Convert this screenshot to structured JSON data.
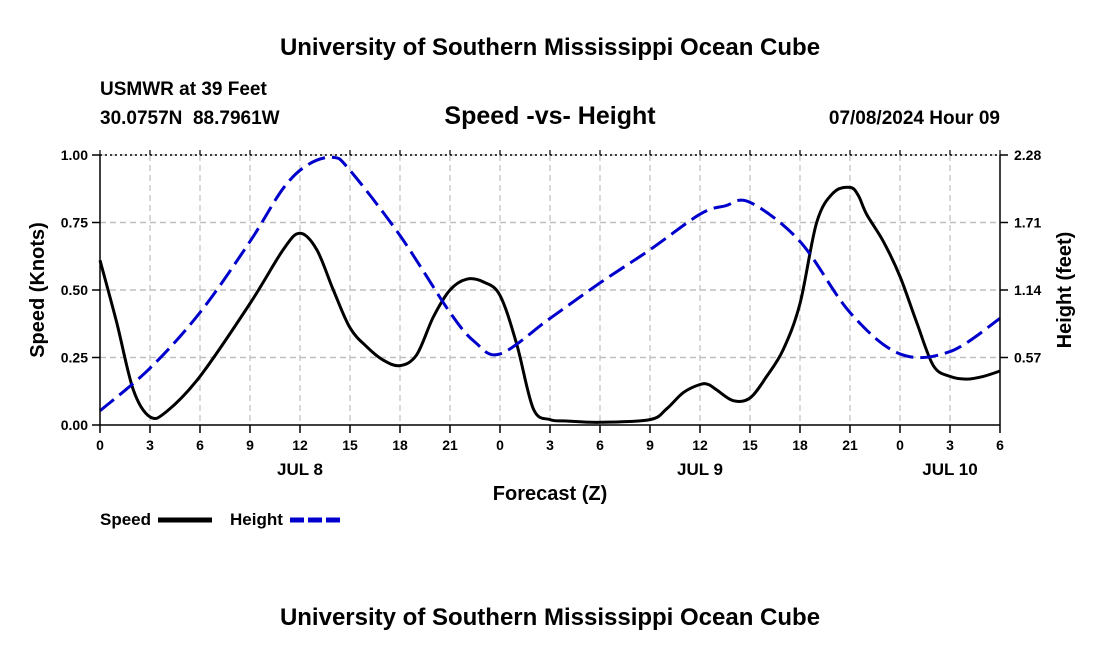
{
  "chart_data": {
    "type": "line",
    "title": "University of Southern Mississippi Ocean Cube",
    "footer_title": "University of Southern Mississippi Ocean Cube",
    "station": "USMWR at 39 Feet",
    "coords": "30.0757N  88.7961W",
    "subtitle": "Speed -vs- Height",
    "timestamp": "07/08/2024 Hour 09",
    "xlabel": "Forecast (Z)",
    "ylabel_left": "Speed (Knots)",
    "ylabel_right": "Height (feet)",
    "x_range": [
      0,
      54
    ],
    "ylim_left": [
      0,
      1.0
    ],
    "ylim_right": [
      0.0,
      2.28
    ],
    "x_tick_values": [
      0,
      3,
      6,
      9,
      12,
      15,
      18,
      21,
      24,
      27,
      30,
      33,
      36,
      39,
      42,
      45,
      48,
      51,
      54
    ],
    "x_tick_labels": [
      "0",
      "3",
      "6",
      "9",
      "12",
      "15",
      "18",
      "21",
      "0",
      "3",
      "6",
      "9",
      "12",
      "15",
      "18",
      "21",
      "0",
      "3",
      "6"
    ],
    "left_ticks": [
      {
        "value": 0.0,
        "label": "0.00"
      },
      {
        "value": 0.25,
        "label": "0.25"
      },
      {
        "value": 0.5,
        "label": "0.50"
      },
      {
        "value": 0.75,
        "label": "0.75"
      },
      {
        "value": 1.0,
        "label": "1.00"
      }
    ],
    "right_ticks": [
      {
        "value": 0.57,
        "label": "0.57"
      },
      {
        "value": 1.14,
        "label": "1.14"
      },
      {
        "value": 1.71,
        "label": "1.71"
      },
      {
        "value": 2.28,
        "label": "2.28"
      }
    ],
    "day_labels": [
      {
        "x": 12,
        "label": "JUL 8"
      },
      {
        "x": 36,
        "label": "JUL 9"
      },
      {
        "x": 51,
        "label": "JUL 10"
      }
    ],
    "legend": [
      {
        "name": "Speed",
        "color": "#000000",
        "dash": "solid"
      },
      {
        "name": "Height",
        "color": "#0000cc",
        "dash": "dashed"
      }
    ],
    "series": [
      {
        "name": "Speed",
        "axis": "left",
        "color": "#000000",
        "x": [
          0,
          1,
          2,
          3,
          4,
          6,
          9,
          11,
          12,
          13,
          14,
          15,
          16,
          17,
          18,
          19,
          20,
          21,
          22,
          23,
          24,
          25,
          26,
          27,
          28,
          30,
          33,
          34,
          35,
          36,
          36.5,
          37,
          38,
          39,
          40,
          41,
          42,
          43,
          44,
          45,
          45.5,
          46,
          47,
          48,
          49,
          50,
          51,
          52,
          53,
          54
        ],
        "values": [
          0.61,
          0.38,
          0.13,
          0.03,
          0.05,
          0.18,
          0.45,
          0.65,
          0.71,
          0.65,
          0.5,
          0.36,
          0.29,
          0.24,
          0.22,
          0.26,
          0.4,
          0.5,
          0.54,
          0.53,
          0.48,
          0.3,
          0.06,
          0.02,
          0.015,
          0.01,
          0.02,
          0.06,
          0.12,
          0.15,
          0.15,
          0.13,
          0.09,
          0.1,
          0.18,
          0.28,
          0.45,
          0.75,
          0.86,
          0.88,
          0.85,
          0.78,
          0.68,
          0.55,
          0.38,
          0.22,
          0.18,
          0.17,
          0.18,
          0.2
        ]
      },
      {
        "name": "Height",
        "axis": "right",
        "color": "#0000cc",
        "x": [
          0,
          3,
          6,
          9,
          11,
          12.5,
          14,
          15,
          18,
          21,
          22.5,
          24,
          27,
          30,
          33,
          36,
          37.5,
          39,
          42,
          45,
          48,
          51,
          54
        ],
        "values": [
          0.12,
          0.48,
          0.95,
          1.55,
          2.0,
          2.2,
          2.26,
          2.15,
          1.6,
          0.95,
          0.7,
          0.6,
          0.9,
          1.2,
          1.48,
          1.78,
          1.85,
          1.88,
          1.55,
          0.95,
          0.6,
          0.62,
          0.9
        ]
      }
    ]
  }
}
